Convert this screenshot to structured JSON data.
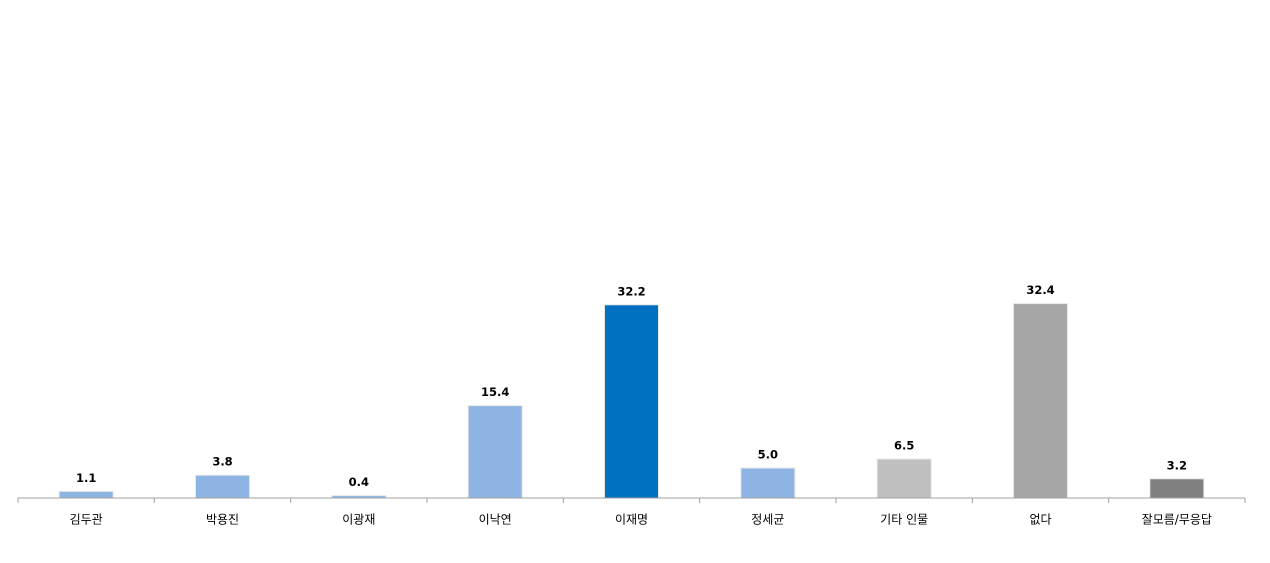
{
  "chart_data": {
    "type": "bar",
    "categories": [
      "김두관",
      "박용진",
      "이광재",
      "이낙연",
      "이재명",
      "정세균",
      "기타 인물",
      "없다",
      "잘모름/무응답"
    ],
    "values": [
      1.1,
      3.8,
      0.4,
      15.4,
      32.2,
      5.0,
      6.5,
      32.4,
      3.2
    ],
    "value_labels": [
      "1.1",
      "3.8",
      "0.4",
      "15.4",
      "32.2",
      "5.0",
      "6.5",
      "32.4",
      "3.2"
    ],
    "colors": [
      "#8db4e2",
      "#8db4e2",
      "#8db4e2",
      "#8db4e2",
      "#0070c0",
      "#8db4e2",
      "#bfbfbf",
      "#a6a6a6",
      "#808080"
    ],
    "ylim": [
      0,
      80
    ]
  }
}
